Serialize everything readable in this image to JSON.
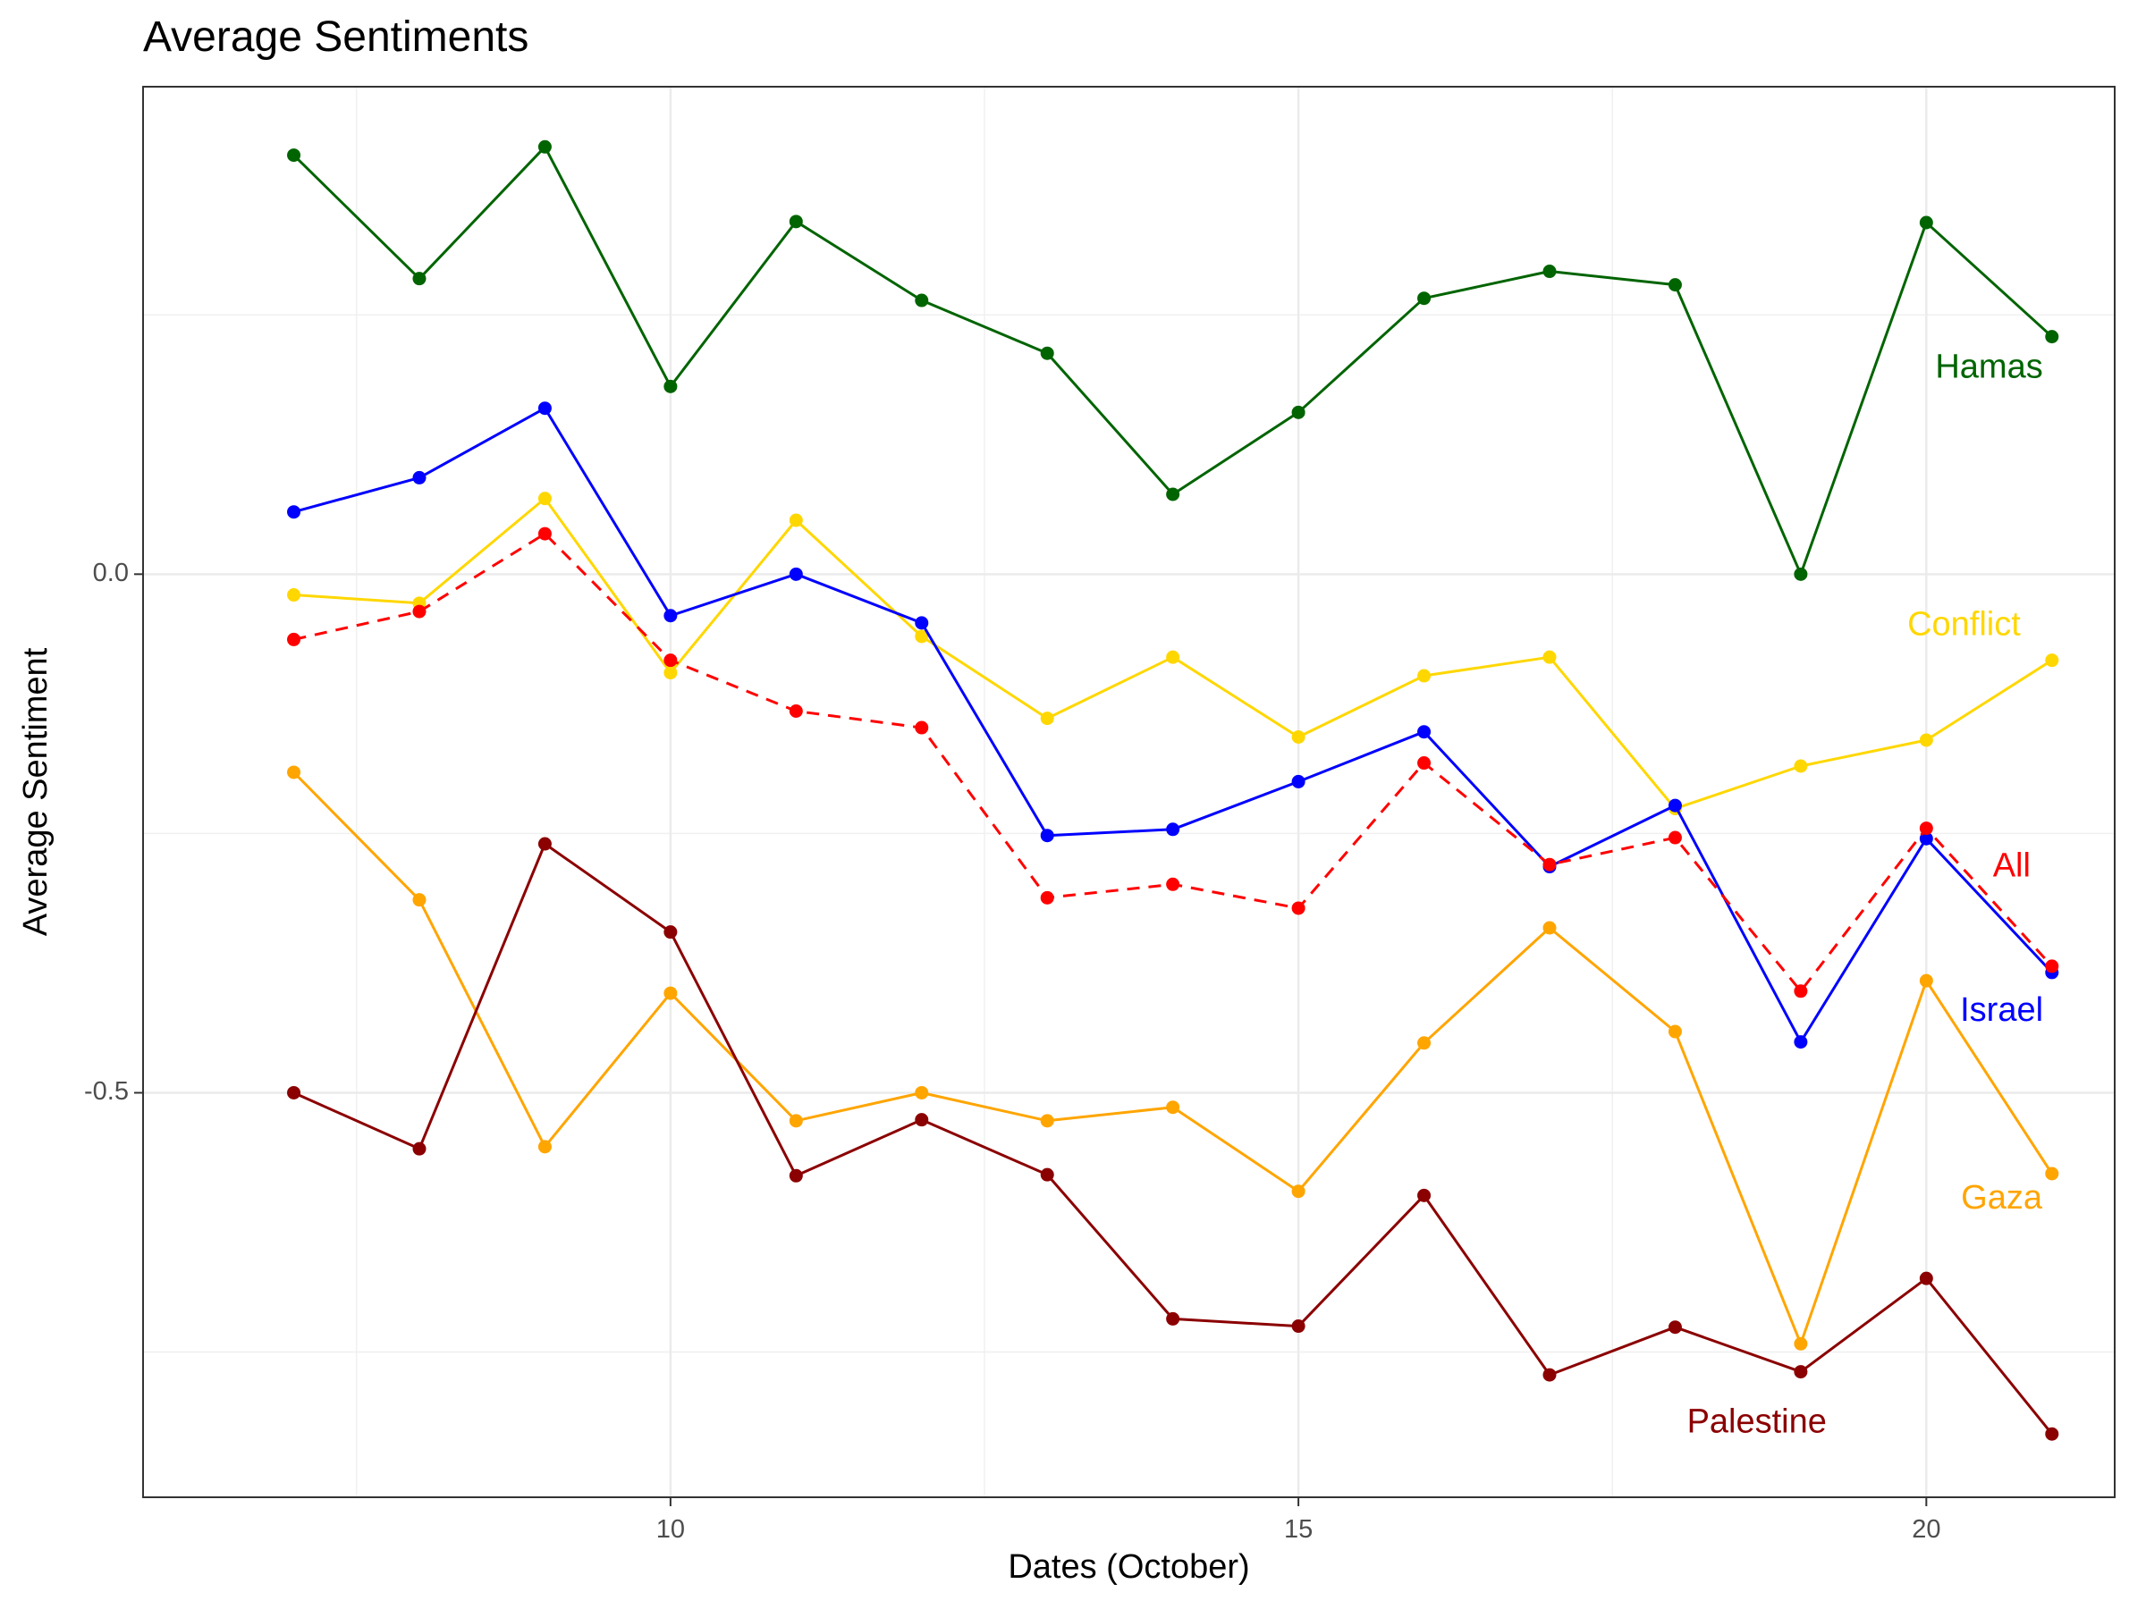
{
  "chart_data": {
    "type": "line",
    "title": "Average Sentiments",
    "xlabel": "Dates (October)",
    "ylabel": "Average Sentiment",
    "x": [
      7,
      8,
      9,
      10,
      11,
      12,
      13,
      14,
      15,
      16,
      17,
      18,
      19,
      20,
      21
    ],
    "xlim": [
      5.8,
      21.5
    ],
    "ylim": [
      -0.89,
      0.47
    ],
    "x_ticks": [
      10,
      15,
      20
    ],
    "y_ticks": [
      0.0,
      -0.5
    ],
    "x_tick_labels": [
      "10",
      "15",
      "20"
    ],
    "y_tick_labels": [
      "0.0",
      "-0.5"
    ],
    "grid": true,
    "legend": "direct labels at line ends",
    "series": [
      {
        "name": "Hamas",
        "color": "#006400",
        "dashed": false,
        "values": [
          0.404,
          0.285,
          0.412,
          0.181,
          0.34,
          0.264,
          0.213,
          0.077,
          0.156,
          0.266,
          0.292,
          0.279,
          0.0,
          0.339,
          0.229
        ]
      },
      {
        "name": "Conflict",
        "color": "#FFD700",
        "dashed": false,
        "values": [
          -0.02,
          -0.028,
          0.073,
          -0.095,
          0.052,
          -0.06,
          -0.139,
          -0.08,
          -0.157,
          -0.098,
          -0.08,
          -0.226,
          -0.185,
          -0.16,
          -0.083
        ]
      },
      {
        "name": "Israel",
        "color": "#0000FF",
        "dashed": false,
        "values": [
          0.06,
          0.093,
          0.16,
          -0.04,
          0.0,
          -0.047,
          -0.252,
          -0.246,
          -0.2,
          -0.152,
          -0.282,
          -0.223,
          -0.451,
          -0.255,
          -0.384
        ]
      },
      {
        "name": "All",
        "color": "#FF0000",
        "dashed": true,
        "values": [
          -0.063,
          -0.036,
          0.039,
          -0.083,
          -0.132,
          -0.148,
          -0.312,
          -0.299,
          -0.322,
          -0.182,
          -0.28,
          -0.254,
          -0.402,
          -0.245,
          -0.378
        ]
      },
      {
        "name": "Gaza",
        "color": "#FFA500",
        "dashed": false,
        "values": [
          -0.191,
          -0.314,
          -0.552,
          -0.404,
          -0.527,
          -0.5,
          -0.527,
          -0.514,
          -0.595,
          -0.452,
          -0.341,
          -0.441,
          -0.742,
          -0.392,
          -0.578
        ]
      },
      {
        "name": "Palestine",
        "color": "#8B0000",
        "dashed": false,
        "values": [
          -0.5,
          -0.554,
          -0.26,
          -0.345,
          -0.58,
          -0.526,
          -0.579,
          -0.718,
          -0.725,
          -0.599,
          -0.772,
          -0.726,
          -0.769,
          -0.679,
          -0.829
        ]
      }
    ]
  }
}
